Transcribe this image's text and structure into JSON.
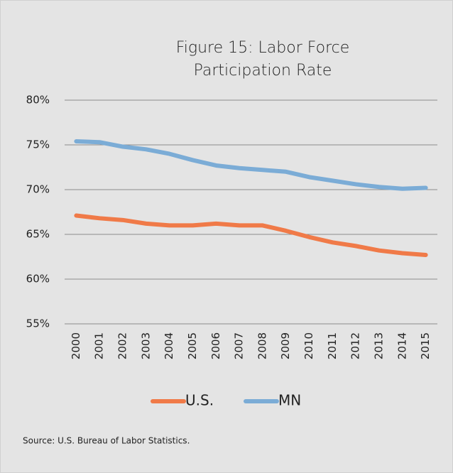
{
  "chart_data": {
    "type": "line",
    "title": "Figure 15: Labor Force",
    "subtitle": "Participation Rate",
    "categories": [
      "2000",
      "2001",
      "2002",
      "2003",
      "2004",
      "2005",
      "2006",
      "2007",
      "2008",
      "2009",
      "2010",
      "2011",
      "2012",
      "2013",
      "2014",
      "2015"
    ],
    "series": [
      {
        "name": "U.S.",
        "color": "#f07a48",
        "values": [
          67.1,
          66.8,
          66.6,
          66.2,
          66.0,
          66.0,
          66.2,
          66.0,
          66.0,
          65.4,
          64.7,
          64.1,
          63.7,
          63.2,
          62.9,
          62.7
        ]
      },
      {
        "name": "MN",
        "color": "#7bacd6",
        "values": [
          75.4,
          75.3,
          74.8,
          74.5,
          74.0,
          73.3,
          72.7,
          72.4,
          72.2,
          72.0,
          71.4,
          71.0,
          70.6,
          70.3,
          70.1,
          70.2
        ]
      }
    ],
    "ylim": [
      55,
      80
    ],
    "yticks": [
      {
        "value": 55,
        "label": "55%"
      },
      {
        "value": 60,
        "label": "60%"
      },
      {
        "value": 65,
        "label": "65%"
      },
      {
        "value": 70,
        "label": "70%"
      },
      {
        "value": 75,
        "label": "75%"
      },
      {
        "value": 80,
        "label": "80%"
      }
    ],
    "grid": true,
    "legend": "bottom",
    "source": "Source: U.S. Bureau of Labor Statistics."
  }
}
